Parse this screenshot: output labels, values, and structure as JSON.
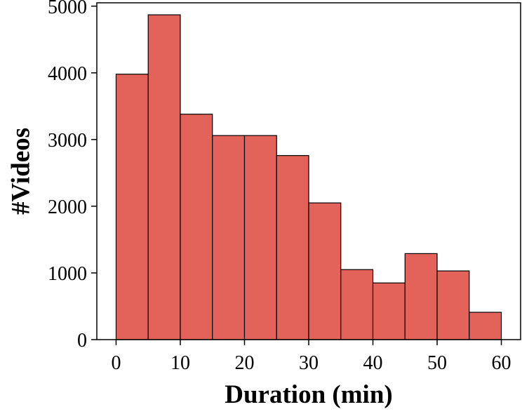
{
  "chart_data": {
    "type": "bar",
    "title": "",
    "xlabel": "Duration (min)",
    "ylabel": "#Videos",
    "bin_edges": [
      0,
      5,
      10,
      15,
      20,
      25,
      30,
      35,
      40,
      45,
      50,
      55,
      60
    ],
    "values": [
      3980,
      4870,
      3380,
      3060,
      3060,
      2760,
      2050,
      1050,
      850,
      1290,
      1030,
      410
    ],
    "xlim": [
      -3,
      63
    ],
    "ylim": [
      0,
      5050
    ],
    "xticks": [
      0,
      10,
      20,
      30,
      40,
      50,
      60
    ],
    "xtick_labels": [
      "0",
      "10",
      "20",
      "30",
      "40",
      "50",
      "60"
    ],
    "yticks": [
      0,
      1000,
      2000,
      3000,
      4000,
      5000
    ],
    "ytick_labels": [
      "0",
      "1000",
      "2000",
      "3000",
      "4000",
      "5000"
    ],
    "bar_color": "#e3635b",
    "edge_color": "#000000",
    "grid": false,
    "legend": "none"
  }
}
